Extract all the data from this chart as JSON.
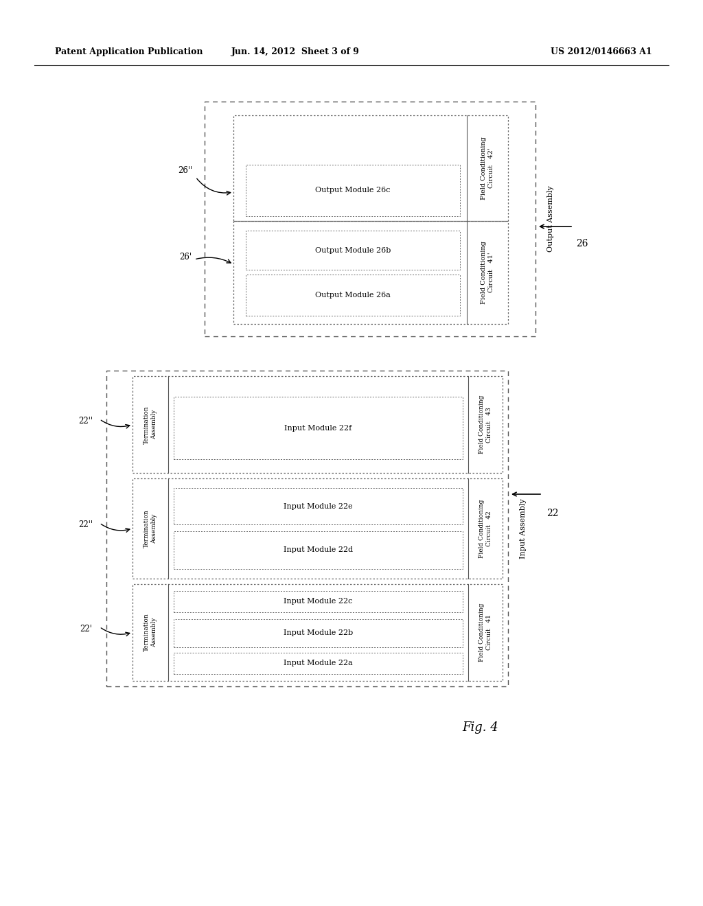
{
  "bg_color": "#ffffff",
  "header_left": "Patent Application Publication",
  "header_center": "Jun. 14, 2012  Sheet 3 of 9",
  "header_right": "US 2012/0146663 A1",
  "fig_label": "Fig. 4"
}
